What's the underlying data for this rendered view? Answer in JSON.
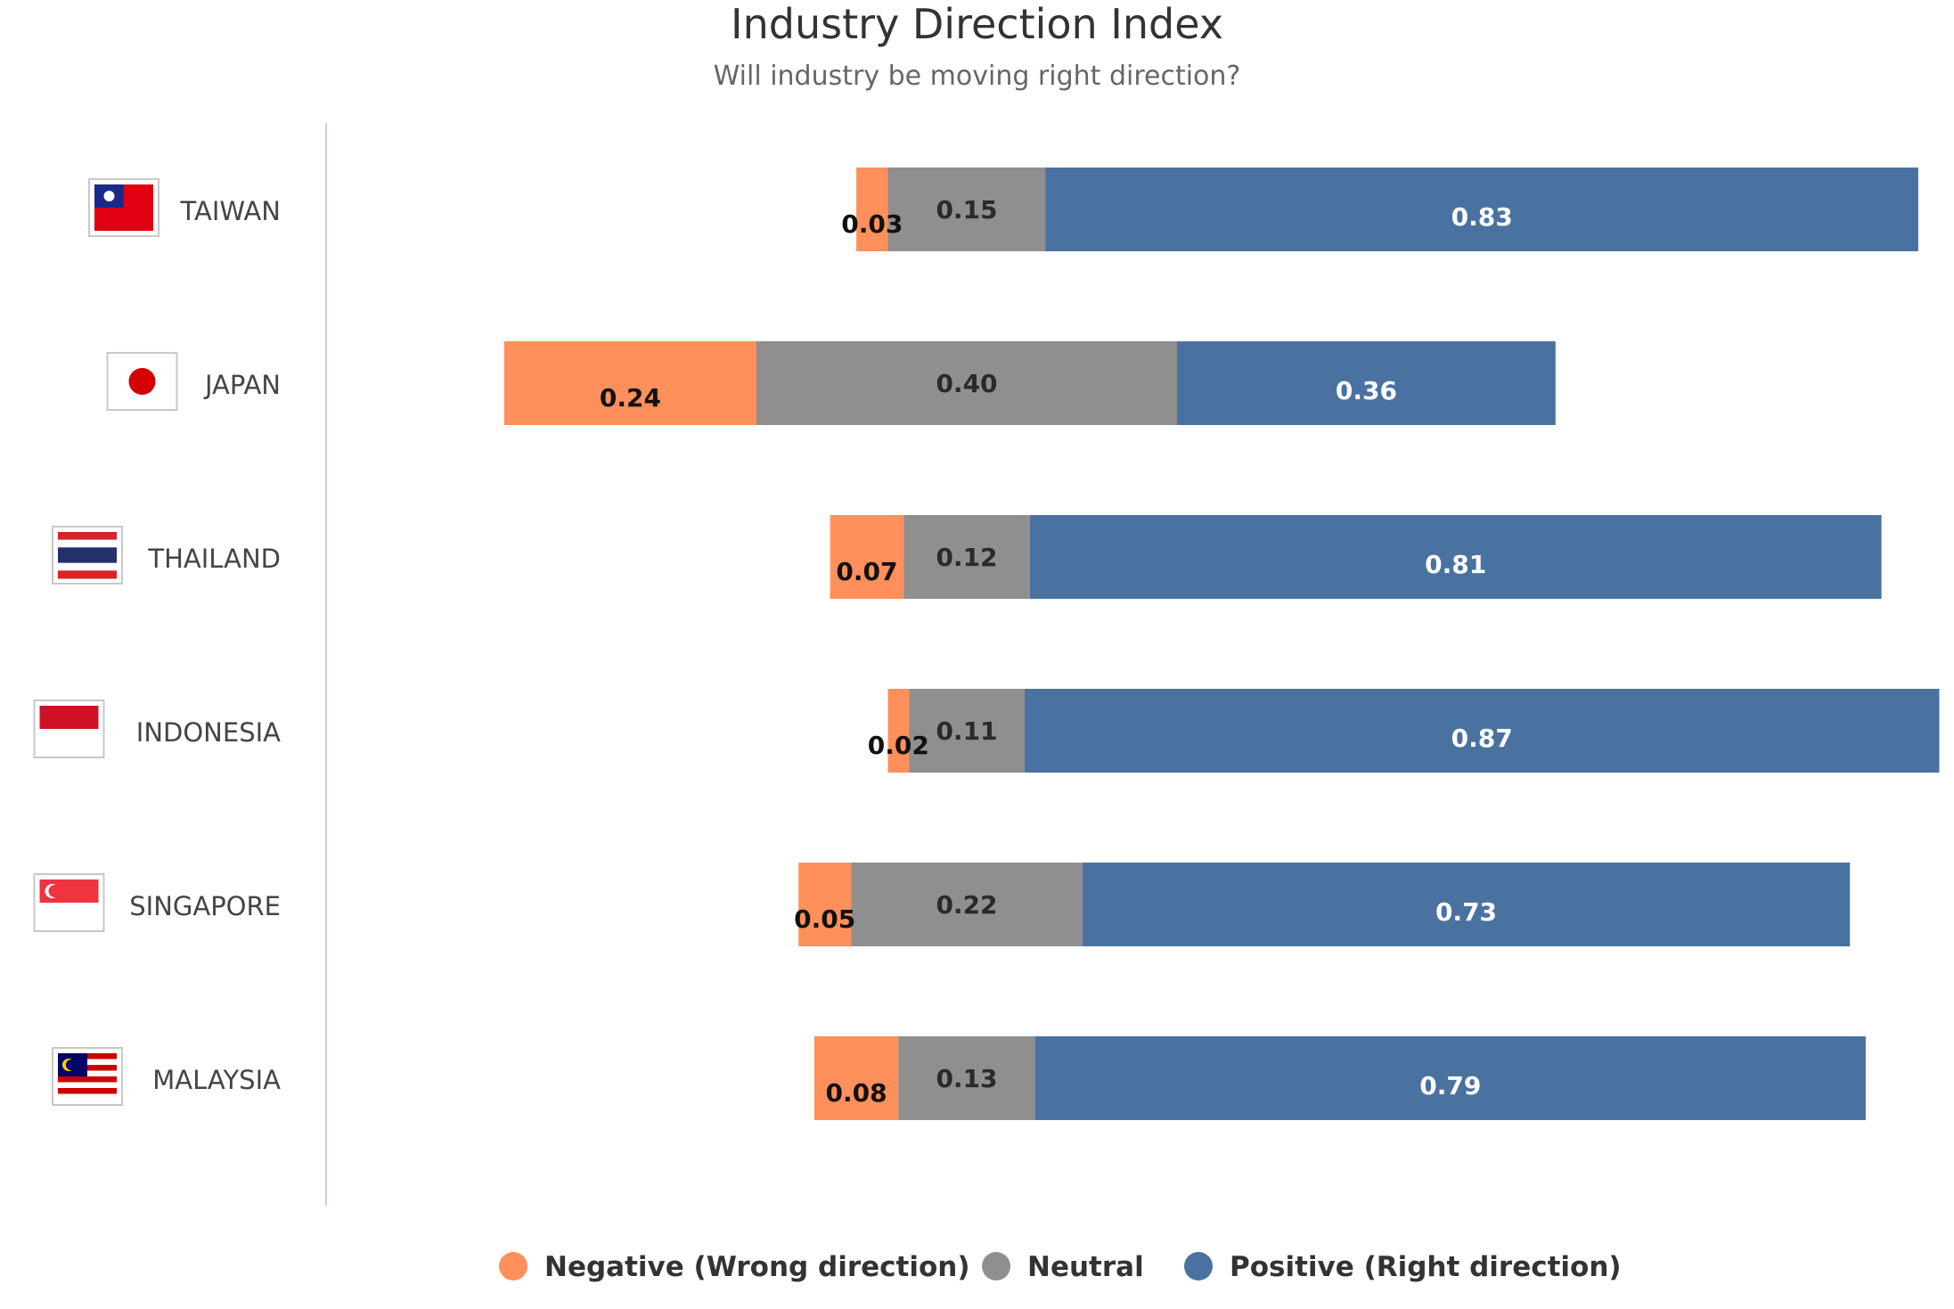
{
  "chart_data": {
    "type": "bar",
    "orientation": "horizontal",
    "stacked": true,
    "diverging": true,
    "title": "Industry Direction Index",
    "subtitle": "Will industry be moving right direction?",
    "categories": [
      "TAIWAN",
      "JAPAN",
      "THAILAND",
      "INDONESIA",
      "SINGAPORE",
      "MALAYSIA"
    ],
    "category_icons": [
      "taiwan-flag-icon",
      "japan-flag-icon",
      "thailand-flag-icon",
      "indonesia-flag-icon",
      "singapore-flag-icon",
      "malaysia-flag-icon"
    ],
    "series": [
      {
        "name": "Negative (Wrong direction)",
        "color": "#FF8F5B",
        "values": [
          0.03,
          0.24,
          0.07,
          0.02,
          0.05,
          0.08
        ],
        "labels": [
          "0.03",
          "0.24",
          "0.07",
          "0.02",
          "0.05",
          "0.08"
        ]
      },
      {
        "name": "Neutral",
        "color": "#8F8F8F",
        "values": [
          0.15,
          0.4,
          0.12,
          0.11,
          0.22,
          0.13
        ],
        "labels": [
          "0.15",
          "0.40",
          "0.12",
          "0.11",
          "0.22",
          "0.13"
        ]
      },
      {
        "name": "Positive (Right direction)",
        "color": "#4A72A0",
        "values": [
          0.83,
          0.36,
          0.81,
          0.87,
          0.73,
          0.79
        ],
        "labels": [
          "0.83",
          "0.36",
          "0.81",
          "0.87",
          "0.73",
          "0.79"
        ]
      }
    ],
    "neutral_centered": true,
    "legend_position": "bottom",
    "grid": false
  }
}
